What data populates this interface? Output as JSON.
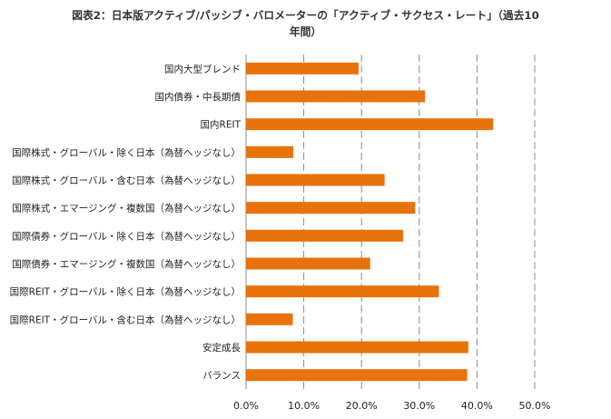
{
  "chart_data": {
    "type": "bar",
    "orientation": "horizontal",
    "title_line1": "図表2：日本版アクティブ/パッシブ・バロメーターの「アクティブ・サクセス・レート」（過去10",
    "title_line2": "年間）",
    "xlim": [
      0,
      50
    ],
    "xticks": [
      0,
      10,
      20,
      30,
      40,
      50
    ],
    "tick_labels": [
      "0.0%",
      "10.0%",
      "20.0%",
      "30.0%",
      "40.0%",
      "50.0%"
    ],
    "grid": "vertical-dashed",
    "bar_color": "#e8720c",
    "categories": [
      "国内大型ブレンド",
      "国内債券・中長期債",
      "国内REIT",
      "国際株式・グローバル・除く日本（為替ヘッジなし）",
      "国際株式・グローバル・含む日本（為替ヘッジなし）",
      "国際株式・エマージング・複数国（為替ヘッジなし）",
      "国際債券・グローバル・除く日本（為替ヘッジなし）",
      "国際債券・エマージング・複数国（為替ヘッジなし）",
      "国際REIT・グローバル・除く日本（為替ヘッジなし）",
      "国際REIT・グローバル・含む日本（為替ヘッジなし）",
      "安定成長",
      "バランス"
    ],
    "values": [
      19.5,
      31.0,
      42.8,
      8.2,
      24.0,
      29.3,
      27.2,
      21.5,
      33.4,
      8.1,
      38.5,
      38.3
    ]
  }
}
